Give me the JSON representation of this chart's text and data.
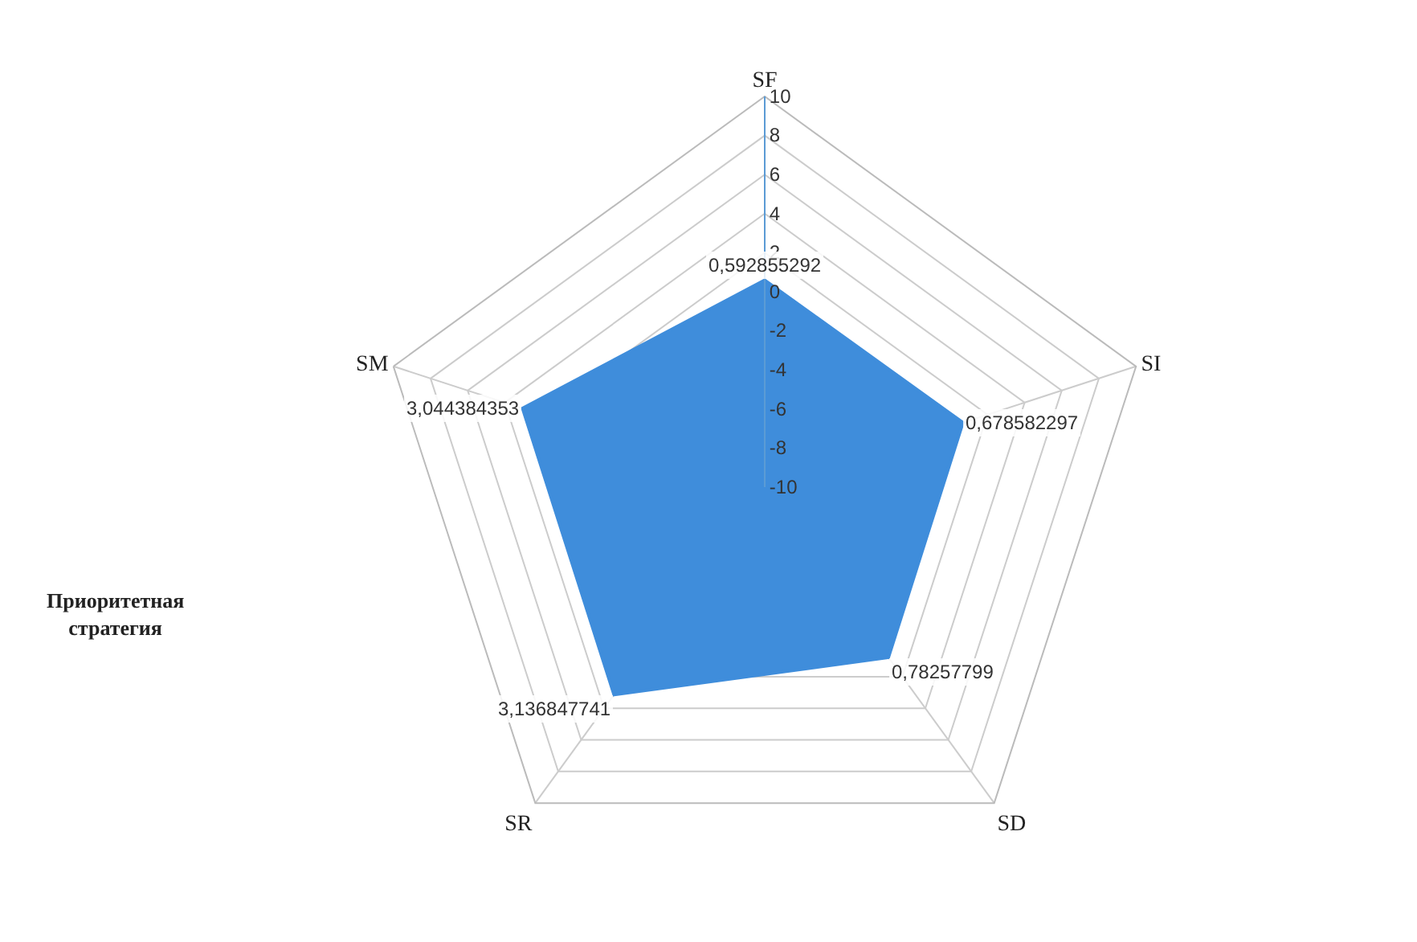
{
  "chart_data": {
    "type": "radar",
    "categories": [
      "SF",
      "SI",
      "SD",
      "SR",
      "SM"
    ],
    "series": [
      {
        "color": "#3f8ddb",
        "values": [
          0.592855292,
          0.678582297,
          0.78257799,
          3.136847741,
          3.044384353
        ],
        "value_labels": [
          "0,592855292",
          "0,678582297",
          "0,78257799",
          "3,136847741",
          "3,044384353"
        ]
      }
    ],
    "ylim": [
      -10,
      10
    ],
    "yticks": [
      -10,
      -8,
      -6,
      -4,
      -2,
      0,
      2,
      4,
      6,
      8,
      10
    ],
    "grid": true,
    "legend": false,
    "annotations": [
      "Приоритетная стратегия"
    ]
  }
}
